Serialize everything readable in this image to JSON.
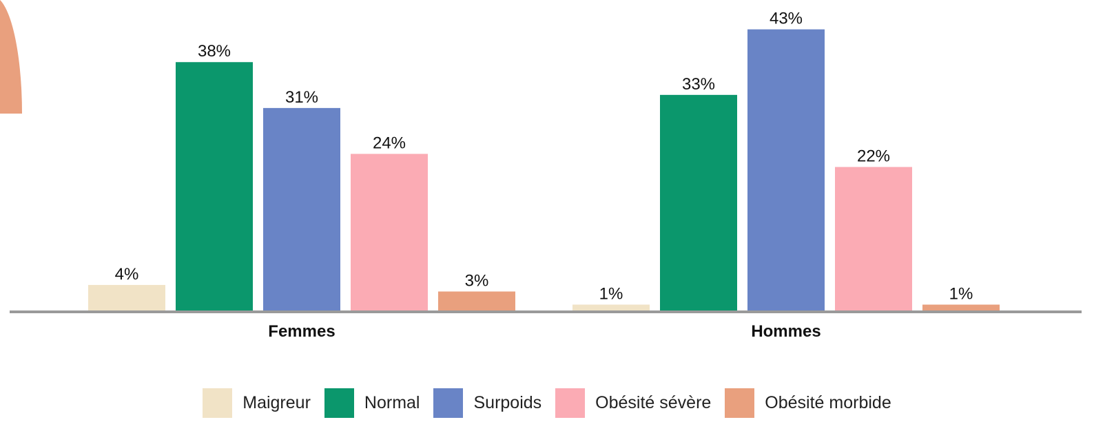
{
  "chart_data": {
    "type": "bar",
    "categories": [
      "Femmes",
      "Hommes"
    ],
    "series": [
      {
        "name": "Maigreur",
        "color": "#f1e3c6",
        "values": [
          4,
          1
        ],
        "labels": [
          "4%",
          "1%"
        ]
      },
      {
        "name": "Normal",
        "color": "#0b976c",
        "values": [
          38,
          33
        ],
        "labels": [
          "38%",
          "33%"
        ]
      },
      {
        "name": "Surpoids",
        "color": "#6984c6",
        "values": [
          31,
          43
        ],
        "labels": [
          "31%",
          "43%"
        ]
      },
      {
        "name": "Obésité sévère",
        "color": "#fbabb4",
        "values": [
          24,
          22
        ],
        "labels": [
          "24%",
          "22%"
        ]
      },
      {
        "name": "Obésité morbide",
        "color": "#e9a07e",
        "values": [
          3,
          1
        ],
        "labels": [
          "3%",
          "1%"
        ]
      }
    ],
    "title": "",
    "xlabel": "",
    "ylabel": "",
    "ylim": [
      0,
      45
    ],
    "grid": false,
    "legend_position": "bottom",
    "axis_color": "#9a9a9a",
    "decoration_color": "#e9a07e"
  }
}
